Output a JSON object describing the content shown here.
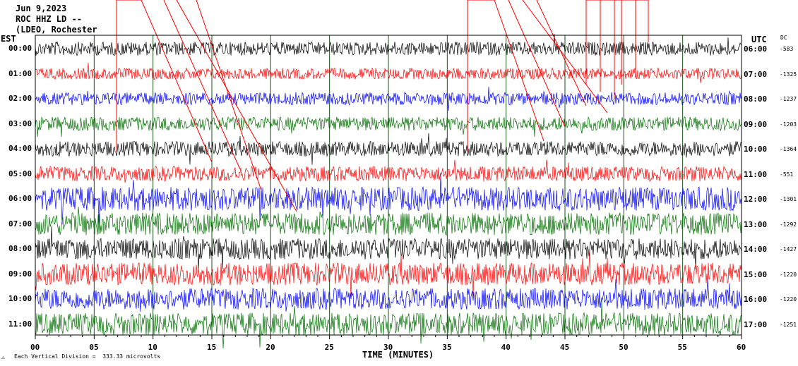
{
  "header": {
    "date": "Jun 9,2023",
    "station": "ROC HHZ LD --",
    "location": "(LDEO, Rochester"
  },
  "labels": {
    "left_tz": "EST",
    "right_tz": "UTC",
    "dc_header": "DC",
    "xlabel": "TIME (MINUTES)",
    "scale_note": "Each Vertical Division =  333.33 microvolts",
    "corner_glyph": "⚠"
  },
  "chart_data": {
    "type": "helicorder",
    "xlabel": "TIME (MINUTES)",
    "xlim": [
      0,
      60
    ],
    "x_ticks": [
      "00",
      "05",
      "10",
      "15",
      "20",
      "25",
      "30",
      "35",
      "40",
      "45",
      "50",
      "55",
      "60"
    ],
    "left_hours": [
      "00:00",
      "01:00",
      "02:00",
      "03:00",
      "04:00",
      "05:00",
      "06:00",
      "07:00",
      "08:00",
      "09:00",
      "10:00",
      "11:00"
    ],
    "right_hours": [
      "06:00",
      "07:00",
      "08:00",
      "09:00",
      "10:00",
      "11:00",
      "12:00",
      "13:00",
      "14:00",
      "15:00",
      "16:00",
      "17:00"
    ],
    "dc_offsets": [
      "-583",
      "-1325",
      "-1237",
      "-1203",
      "-1364",
      "-551",
      "-1301",
      "-1292",
      "-1427",
      "-1220",
      "-1220",
      "-1251"
    ],
    "trace_colors": [
      "#000000",
      "#ff0000",
      "#0000ff",
      "#007000"
    ],
    "amplitude_levels": [
      0.55,
      0.45,
      0.5,
      0.55,
      0.6,
      0.6,
      0.95,
      0.9,
      0.85,
      0.9,
      0.85,
      0.9
    ],
    "gridlines_minutes": [
      5,
      10,
      15,
      20,
      25,
      30,
      35,
      40,
      45,
      50,
      55
    ]
  }
}
